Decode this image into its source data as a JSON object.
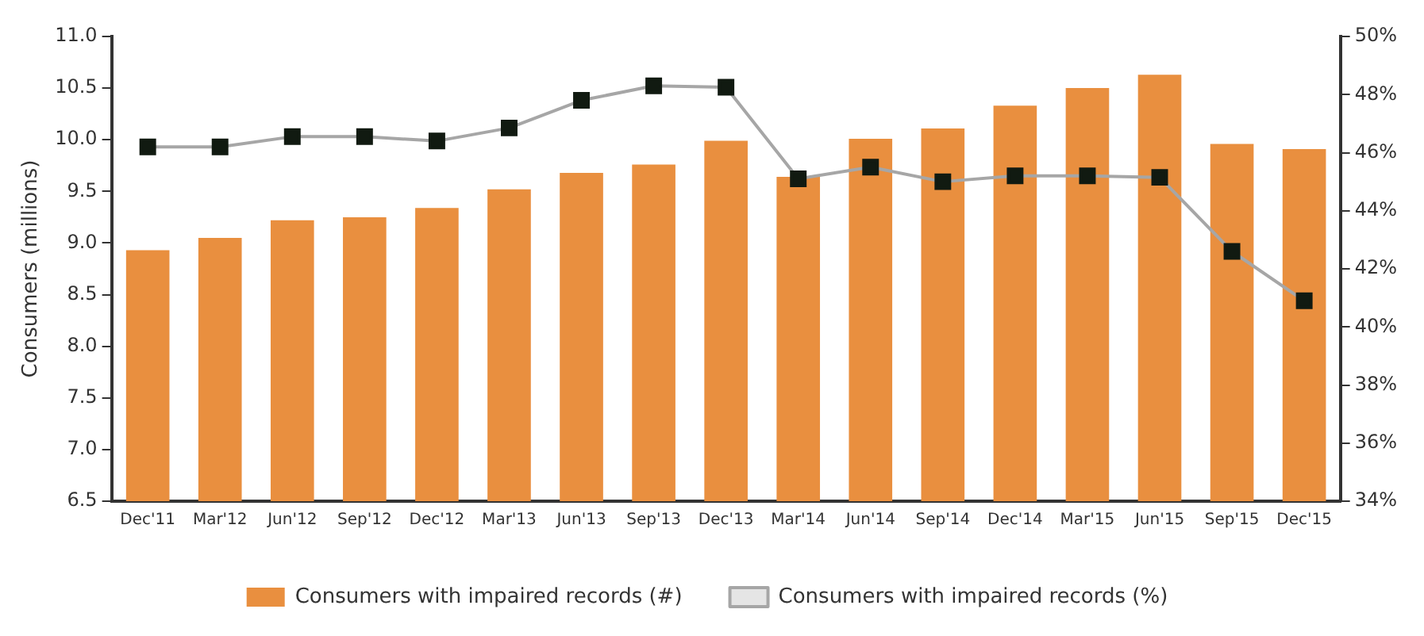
{
  "chart_data": {
    "type": "bar",
    "categories": [
      "Dec'11",
      "Mar'12",
      "Jun'12",
      "Sep'12",
      "Dec'12",
      "Mar'13",
      "Jun'13",
      "Sep'13",
      "Dec'13",
      "Mar'14",
      "Jun'14",
      "Sep'14",
      "Dec'14",
      "Mar'15",
      "Jun'15",
      "Sep'15",
      "Dec'15"
    ],
    "ylabel": "Consumers (millions)",
    "series": [
      {
        "name": "Consumers with impaired records (#)",
        "color": "#e98f3f",
        "values": [
          8.93,
          9.05,
          9.22,
          9.25,
          9.34,
          9.52,
          9.68,
          9.76,
          9.99,
          9.64,
          10.01,
          10.11,
          10.33,
          10.5,
          10.63,
          9.96,
          9.91
        ]
      },
      {
        "name": "Consumers with impaired records (%)",
        "type": "line",
        "axis": "y2",
        "color": "#a6a6a6",
        "marker": "square",
        "values": [
          46.2,
          46.2,
          46.55,
          46.55,
          46.4,
          46.85,
          47.8,
          48.3,
          48.25,
          45.1,
          45.5,
          45.0,
          45.2,
          45.2,
          45.15,
          42.6,
          40.9
        ]
      }
    ],
    "ylim": [
      6.5,
      11.0
    ],
    "yticks": [
      6.5,
      {
        "value": 7,
        "label": "7.0"
      },
      7.5,
      {
        "value": 8,
        "label": "8.0"
      },
      8.5,
      {
        "value": 9,
        "label": "9.0"
      },
      9.5,
      {
        "value": 10,
        "label": "10.0"
      },
      10.5,
      {
        "value": 11,
        "label": "11.0"
      }
    ],
    "y2lim": [
      34,
      50
    ],
    "y2ticks": [
      {
        "value": 34,
        "label": "34%"
      },
      {
        "value": 36,
        "label": "36%"
      },
      {
        "value": 38,
        "label": "38%"
      },
      {
        "value": 40,
        "label": "40%"
      },
      {
        "value": 42,
        "label": "42%"
      },
      {
        "value": 44,
        "label": "44%"
      },
      {
        "value": 46,
        "label": "46%"
      },
      {
        "value": 48,
        "label": "48%"
      },
      {
        "value": 50,
        "label": "50%"
      }
    ],
    "grid": false,
    "legend": "bottom"
  }
}
